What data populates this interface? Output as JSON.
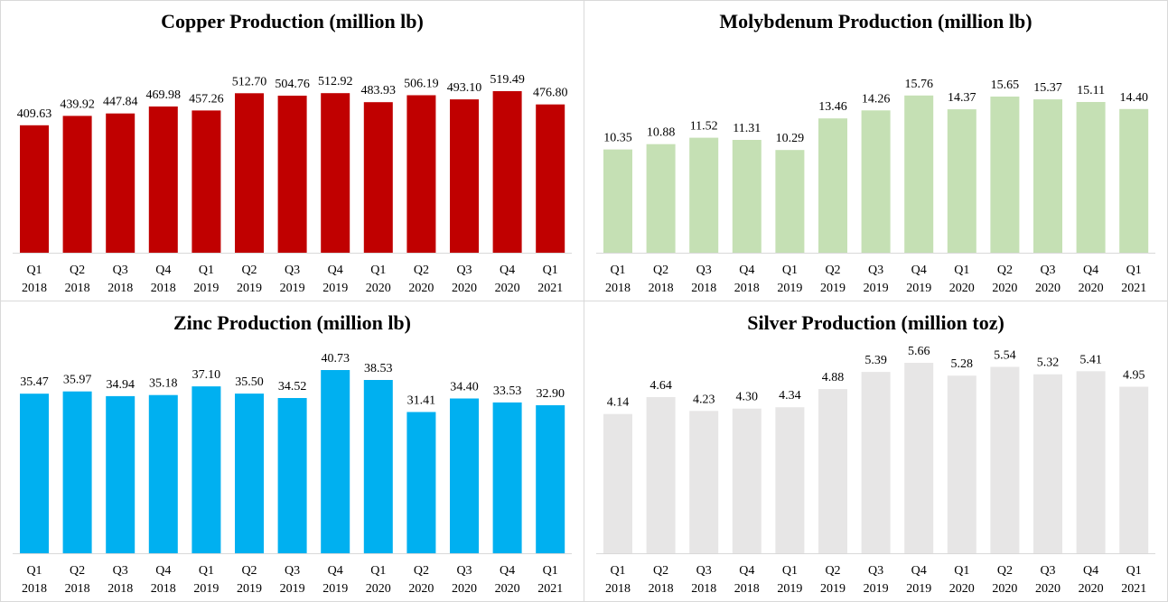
{
  "chart_data": [
    {
      "type": "bar",
      "title": "Copper Production (million lb)",
      "categories": [
        [
          "Q1",
          "2018"
        ],
        [
          "Q2",
          "2018"
        ],
        [
          "Q3",
          "2018"
        ],
        [
          "Q4",
          "2018"
        ],
        [
          "Q1",
          "2019"
        ],
        [
          "Q2",
          "2019"
        ],
        [
          "Q3",
          "2019"
        ],
        [
          "Q4",
          "2019"
        ],
        [
          "Q1",
          "2020"
        ],
        [
          "Q2",
          "2020"
        ],
        [
          "Q3",
          "2020"
        ],
        [
          "Q4",
          "2020"
        ],
        [
          "Q1",
          "2021"
        ]
      ],
      "values": [
        409.63,
        439.92,
        447.84,
        469.98,
        457.26,
        512.7,
        504.76,
        512.92,
        483.93,
        506.19,
        493.1,
        519.49,
        476.8
      ],
      "labels": [
        "409.63",
        "439.92",
        "447.84",
        "469.98",
        "457.26",
        "512.70",
        "504.76",
        "512.92",
        "483.93",
        "506.19",
        "493.10",
        "519.49",
        "476.80"
      ],
      "color": "#c00000",
      "ylim": [
        0,
        560
      ],
      "grid": false,
      "legend": false
    },
    {
      "type": "bar",
      "title": "Molybdenum Production (million lb)",
      "categories": [
        [
          "Q1",
          "2018"
        ],
        [
          "Q2",
          "2018"
        ],
        [
          "Q3",
          "2018"
        ],
        [
          "Q4",
          "2018"
        ],
        [
          "Q1",
          "2019"
        ],
        [
          "Q2",
          "2019"
        ],
        [
          "Q3",
          "2019"
        ],
        [
          "Q4",
          "2019"
        ],
        [
          "Q1",
          "2020"
        ],
        [
          "Q2",
          "2020"
        ],
        [
          "Q3",
          "2020"
        ],
        [
          "Q4",
          "2020"
        ],
        [
          "Q1",
          "2021"
        ]
      ],
      "values": [
        10.35,
        10.88,
        11.52,
        11.31,
        10.29,
        13.46,
        14.26,
        15.76,
        14.37,
        15.65,
        15.37,
        15.11,
        14.4
      ],
      "labels": [
        "10.35",
        "10.88",
        "11.52",
        "11.31",
        "10.29",
        "13.46",
        "14.26",
        "15.76",
        "14.37",
        "15.65",
        "15.37",
        "15.11",
        "14.40"
      ],
      "color": "#c5e0b4",
      "ylim": [
        0,
        18
      ],
      "grid": false,
      "legend": false
    },
    {
      "type": "bar",
      "title": "Zinc Production (million lb)",
      "categories": [
        [
          "Q1",
          "2018"
        ],
        [
          "Q2",
          "2018"
        ],
        [
          "Q3",
          "2018"
        ],
        [
          "Q4",
          "2018"
        ],
        [
          "Q1",
          "2019"
        ],
        [
          "Q2",
          "2019"
        ],
        [
          "Q3",
          "2019"
        ],
        [
          "Q4",
          "2019"
        ],
        [
          "Q1",
          "2020"
        ],
        [
          "Q2",
          "2020"
        ],
        [
          "Q3",
          "2020"
        ],
        [
          "Q4",
          "2020"
        ],
        [
          "Q1",
          "2021"
        ]
      ],
      "values": [
        35.47,
        35.97,
        34.94,
        35.18,
        37.1,
        35.5,
        34.52,
        40.73,
        38.53,
        31.41,
        34.4,
        33.53,
        32.9
      ],
      "labels": [
        "35.47",
        "35.97",
        "34.94",
        "35.18",
        "37.10",
        "35.50",
        "34.52",
        "40.73",
        "38.53",
        "31.41",
        "34.40",
        "33.53",
        "32.90"
      ],
      "color": "#00b0f0",
      "ylim": [
        0,
        40.73
      ],
      "grid": false,
      "legend": false
    },
    {
      "type": "bar",
      "title": "Silver Production (million toz)",
      "categories": [
        [
          "Q1",
          "2018"
        ],
        [
          "Q2",
          "2018"
        ],
        [
          "Q3",
          "2018"
        ],
        [
          "Q4",
          "2018"
        ],
        [
          "Q1",
          "2019"
        ],
        [
          "Q2",
          "2019"
        ],
        [
          "Q3",
          "2019"
        ],
        [
          "Q4",
          "2019"
        ],
        [
          "Q1",
          "2020"
        ],
        [
          "Q2",
          "2020"
        ],
        [
          "Q3",
          "2020"
        ],
        [
          "Q4",
          "2020"
        ],
        [
          "Q1",
          "2021"
        ]
      ],
      "values": [
        4.14,
        4.64,
        4.23,
        4.3,
        4.34,
        4.88,
        5.39,
        5.66,
        5.28,
        5.54,
        5.32,
        5.41,
        4.95
      ],
      "labels": [
        "4.14",
        "4.64",
        "4.23",
        "4.30",
        "4.34",
        "4.88",
        "5.39",
        "5.66",
        "5.28",
        "5.54",
        "5.32",
        "5.41",
        "4.95"
      ],
      "color": "#e7e6e6",
      "ylim": [
        0,
        5.66
      ],
      "grid": false,
      "legend": false
    }
  ]
}
